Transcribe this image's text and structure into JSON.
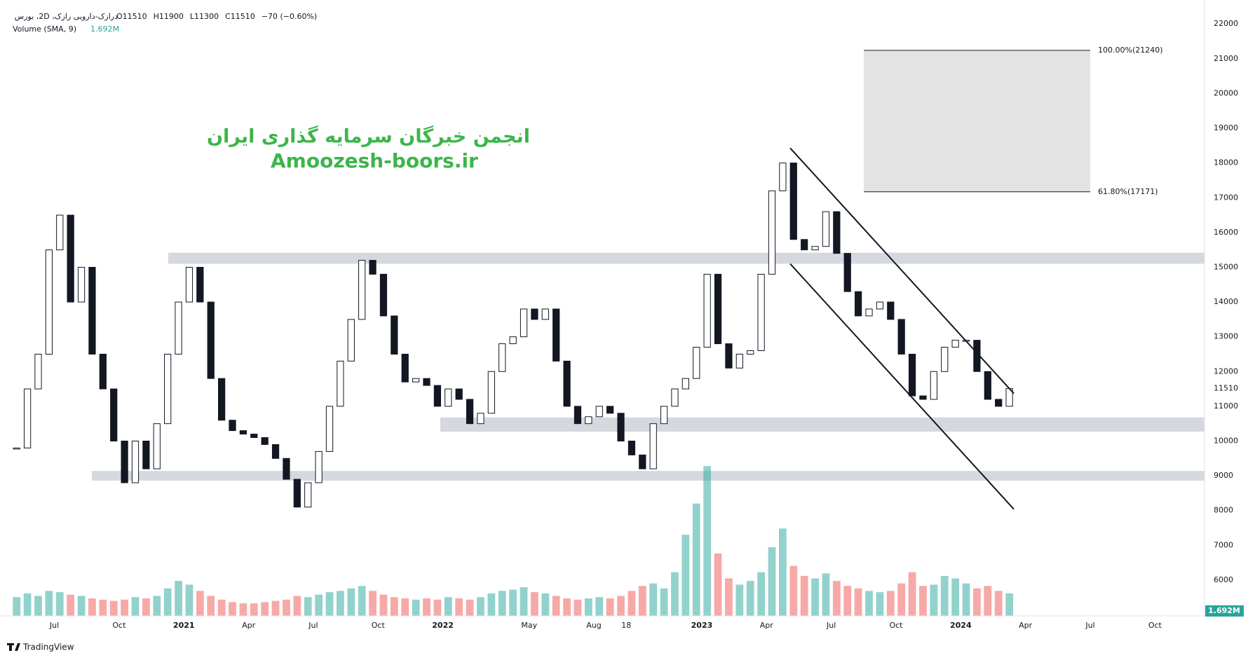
{
  "header": {
    "symbol": "درازک-دارویی رازک، 2D، بورس",
    "ohlc": [
      "O11510",
      "H11900",
      "L11300",
      "C11510",
      "−70 (−0.60%)"
    ],
    "indicator": "Volume (SMA, 9)",
    "indicator_value": "1.692M"
  },
  "watermark": {
    "line1": "انجمن خبرگان سرمایه گذاری ایران",
    "line2": "Amoozesh-boors.ir"
  },
  "brand": "TradingView",
  "chart_data": {
    "type": "candlestick",
    "categories": [
      null,
      null,
      null,
      null,
      "Jul",
      null,
      null,
      null,
      null,
      null,
      "Oct",
      null,
      null,
      null,
      null,
      null,
      "2021",
      null,
      null,
      null,
      null,
      null,
      "Apr",
      null,
      null,
      null,
      null,
      null,
      "Jul",
      null,
      null,
      null,
      null,
      null,
      "Oct",
      null,
      null,
      null,
      null,
      null,
      "2022",
      null,
      null,
      null,
      null,
      null,
      null,
      null,
      "May",
      null,
      null,
      null,
      null,
      null,
      "Aug",
      null,
      null,
      "18",
      null,
      null,
      null,
      null,
      null,
      null,
      "2023",
      null,
      null,
      null,
      null,
      null,
      "Apr",
      null,
      null,
      null,
      null,
      null,
      "Jul",
      null,
      null,
      null,
      null,
      null,
      "Oct",
      null,
      null,
      null,
      null,
      null,
      "2024",
      null,
      null,
      null,
      null,
      null,
      "Apr",
      null,
      null,
      null,
      null,
      null,
      "Jul",
      null,
      null,
      null,
      null,
      null,
      "Oct",
      null,
      null,
      null
    ],
    "close": [
      9800,
      11500,
      12500,
      15500,
      16500,
      14000,
      15000,
      12500,
      11500,
      10000,
      8800,
      10000,
      9200,
      10500,
      12500,
      14000,
      15000,
      14000,
      11800,
      10600,
      10300,
      10200,
      10100,
      9900,
      9500,
      8900,
      8100,
      8800,
      9700,
      11000,
      12300,
      13500,
      15200,
      14800,
      13600,
      12500,
      11700,
      11800,
      11600,
      11000,
      11500,
      11200,
      10500,
      10800,
      12000,
      12800,
      13000,
      13800,
      13500,
      13800,
      12300,
      11000,
      10500,
      10700,
      11000,
      10800,
      10000,
      9600,
      9200,
      10500,
      11000,
      11500,
      11800,
      12700,
      14800,
      12800,
      12100,
      12500,
      12600,
      14800,
      17200,
      18000,
      15800,
      15500,
      15600,
      16600,
      15400,
      14300,
      13600,
      13800,
      14000,
      13500,
      12500,
      11300,
      11200,
      12000,
      12700,
      12900,
      12900,
      12000,
      11200,
      11000,
      11510,
      null,
      null,
      null,
      null,
      null,
      null,
      null,
      null,
      null,
      null,
      null,
      null,
      null,
      null,
      null,
      null,
      null
    ],
    "volume": [
      1.5,
      1.8,
      1.6,
      2.0,
      1.9,
      1.7,
      1.6,
      1.4,
      1.3,
      1.2,
      1.3,
      1.5,
      1.4,
      1.6,
      2.2,
      2.8,
      2.5,
      2.0,
      1.6,
      1.3,
      1.1,
      1.0,
      1.0,
      1.1,
      1.2,
      1.3,
      1.6,
      1.5,
      1.7,
      1.9,
      2.0,
      2.2,
      2.4,
      2.0,
      1.7,
      1.5,
      1.4,
      1.3,
      1.4,
      1.3,
      1.5,
      1.4,
      1.3,
      1.5,
      1.8,
      2.0,
      2.1,
      2.3,
      1.9,
      1.8,
      1.6,
      1.4,
      1.3,
      1.4,
      1.5,
      1.4,
      1.6,
      2.0,
      2.4,
      2.6,
      2.2,
      3.5,
      6.5,
      9.0,
      12.0,
      5.0,
      3.0,
      2.5,
      2.8,
      3.5,
      5.5,
      7.0,
      4.0,
      3.2,
      3.0,
      3.4,
      2.8,
      2.4,
      2.2,
      2.0,
      1.9,
      2.0,
      2.6,
      3.5,
      2.4,
      2.5,
      3.2,
      3.0,
      2.6,
      2.2,
      2.4,
      2.0,
      1.8,
      null,
      null,
      null,
      null,
      null,
      null,
      null,
      null,
      null,
      null,
      null,
      null,
      null,
      null,
      null,
      null,
      null
    ],
    "ylim": [
      4970,
      22690
    ],
    "yticks": [
      6000,
      7000,
      8000,
      9000,
      10000,
      11000,
      12000,
      13000,
      14000,
      15000,
      16000,
      17000,
      18000,
      19000,
      20000,
      21000,
      22000
    ],
    "last_price": 11510,
    "volume_lim": [
      0,
      16
    ],
    "up_color": "#26a69a",
    "down_color": "#ef5350",
    "candle_color": "#131722",
    "zones": [
      [
        15100,
        15420
      ],
      [
        10270,
        10680
      ],
      [
        8860,
        9140
      ]
    ],
    "channel": [
      [
        18430,
        11370
      ],
      [
        15100,
        8040
      ]
    ],
    "fib_levels": [
      {
        "value": 21240,
        "label": "100.00%(21240)"
      },
      {
        "value": 17171,
        "label": "61.80%(17171)"
      }
    ]
  }
}
